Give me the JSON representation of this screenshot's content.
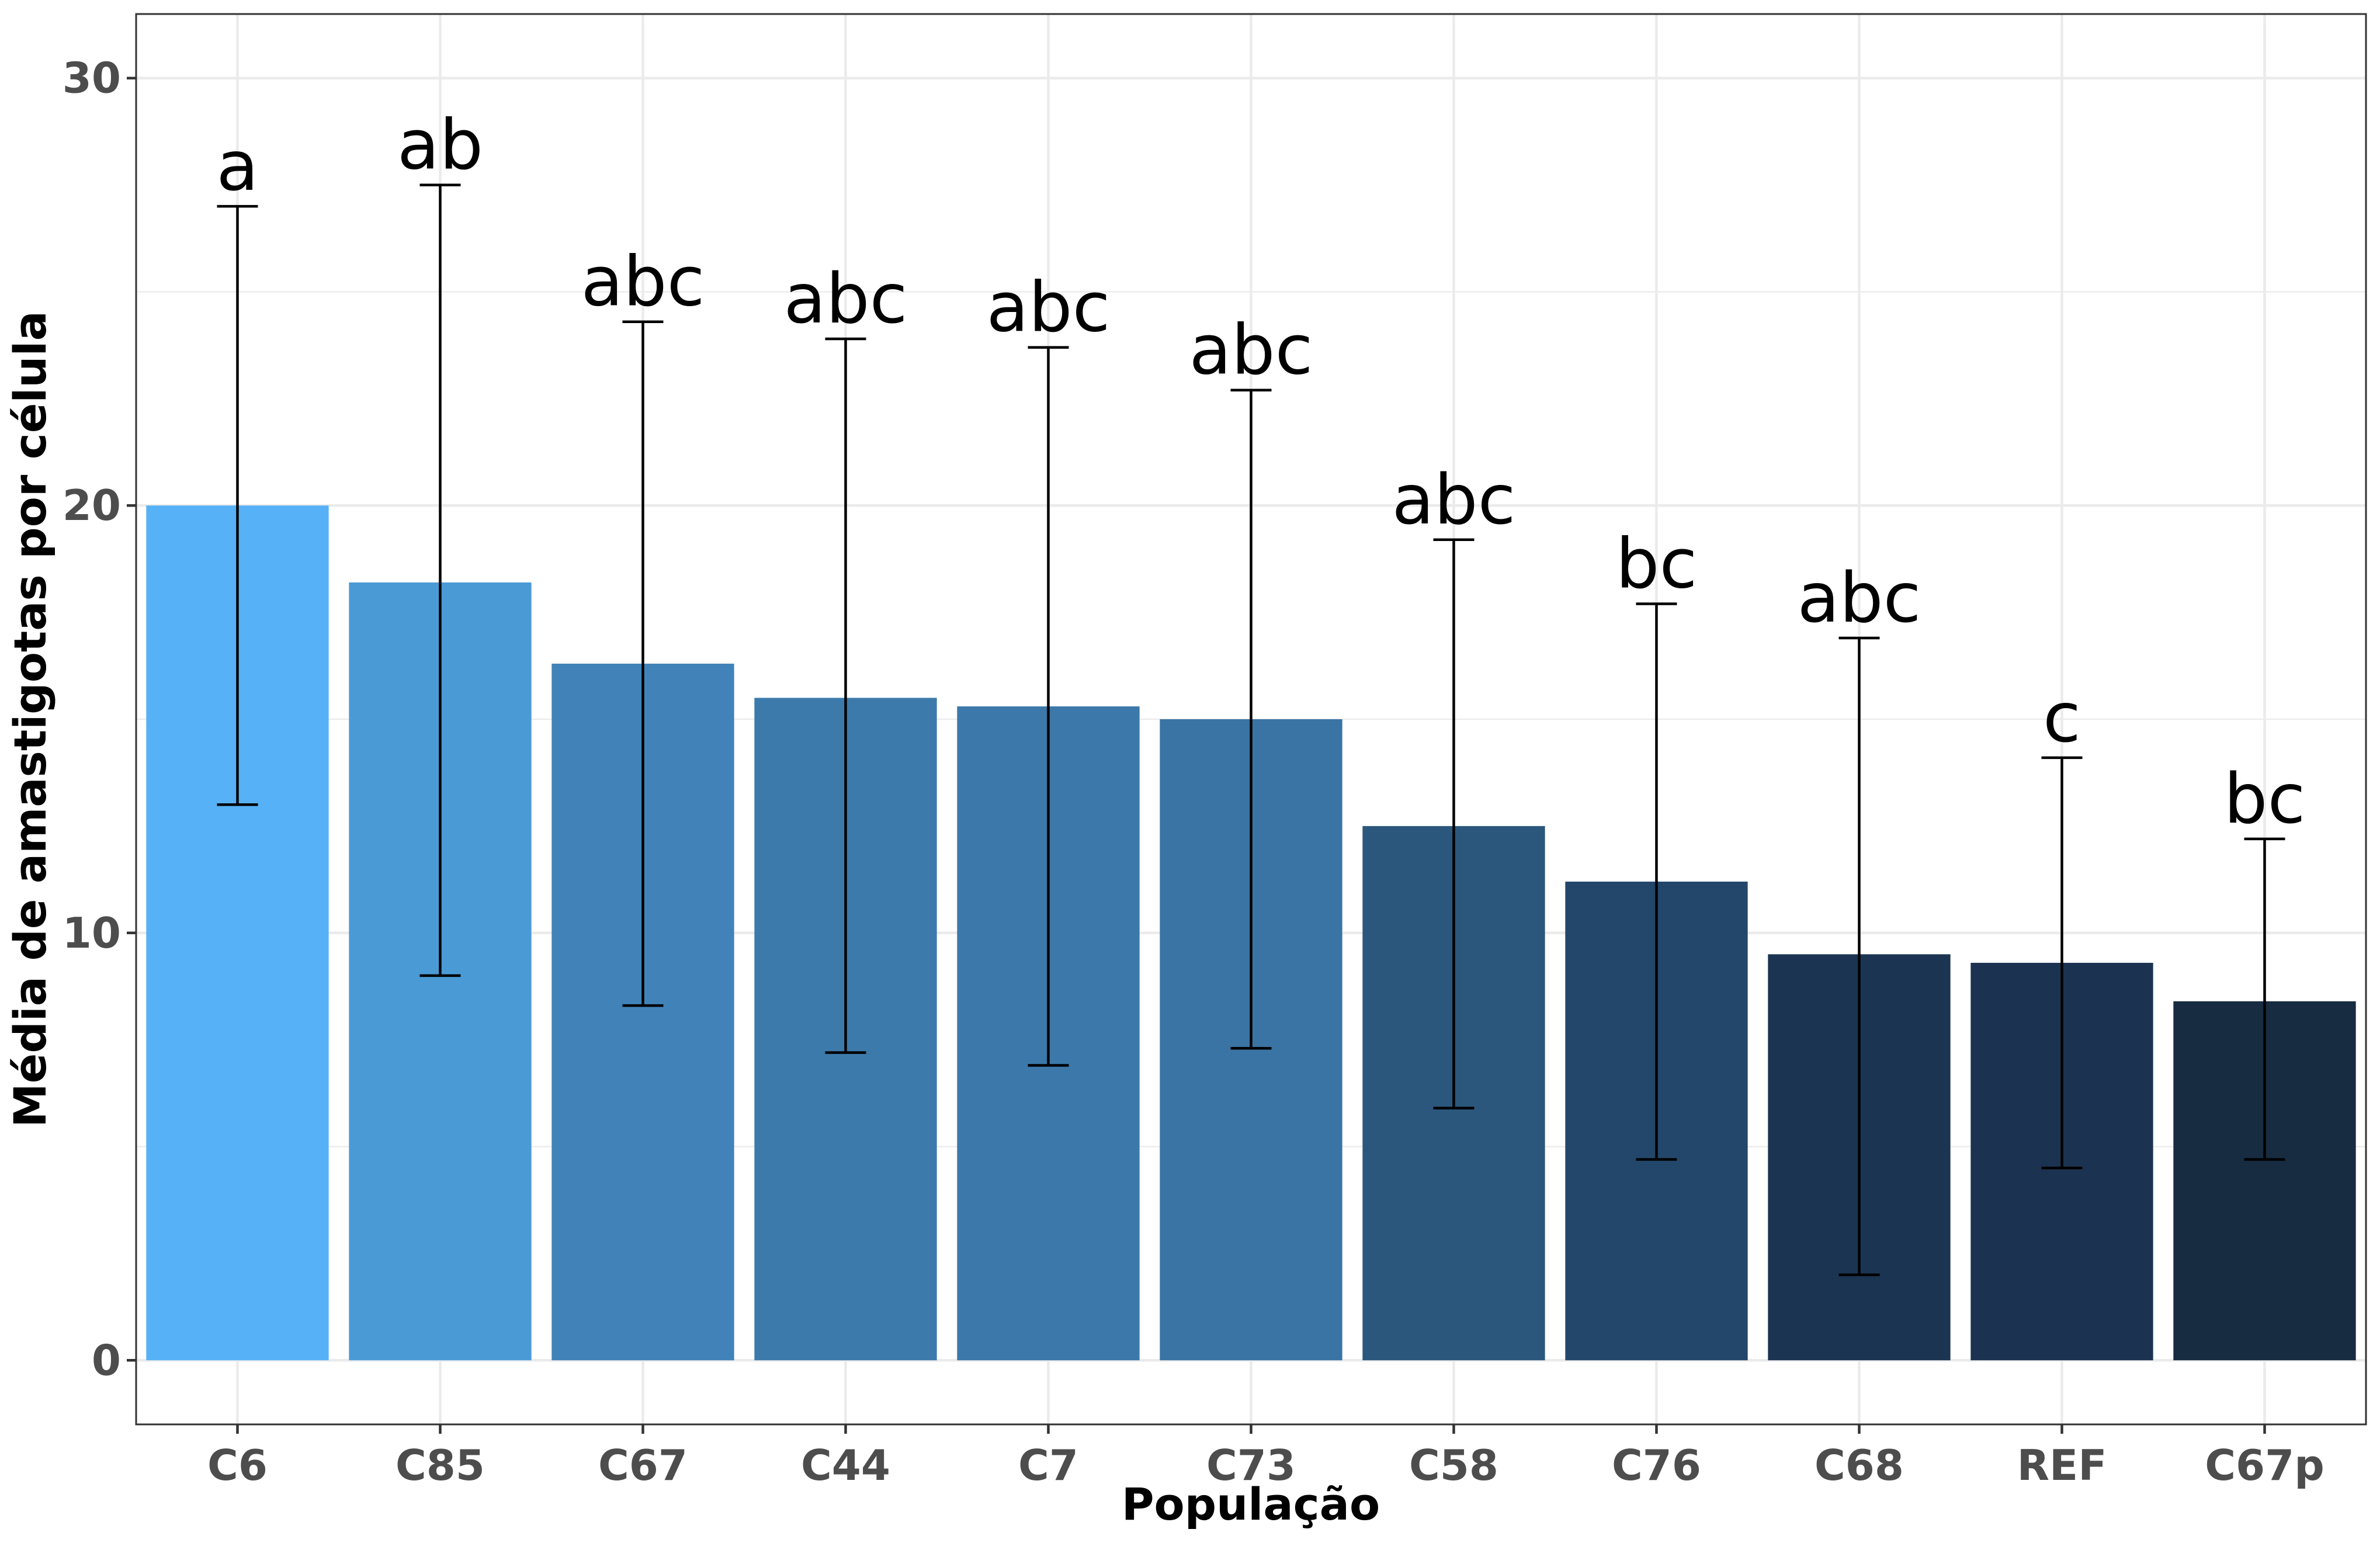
{
  "chart_data": {
    "type": "bar",
    "title": "",
    "xlabel": "População",
    "ylabel": "Média de amastigotas por célula",
    "ylim": [
      -1.5,
      31.5
    ],
    "yticks": [
      0,
      10,
      20,
      30
    ],
    "grid": true,
    "categories": [
      "C6",
      "C85",
      "C67",
      "C44",
      "C7",
      "C73",
      "C58",
      "C76",
      "C68",
      "REF",
      "C67p"
    ],
    "values": [
      20.0,
      18.2,
      16.3,
      15.5,
      15.3,
      15.0,
      12.5,
      11.2,
      9.5,
      9.3,
      8.4
    ],
    "error_low": [
      13.0,
      9.0,
      8.3,
      7.2,
      6.9,
      7.3,
      5.9,
      4.7,
      2.0,
      4.5,
      4.7
    ],
    "error_high": [
      27.0,
      27.5,
      24.3,
      23.9,
      23.7,
      22.7,
      19.2,
      17.7,
      16.9,
      14.1,
      12.2
    ],
    "significance_labels": [
      "a",
      "ab",
      "abc",
      "abc",
      "abc",
      "abc",
      "abc",
      "bc",
      "abc",
      "c",
      "bc"
    ],
    "bar_colors": [
      "#56B1F7",
      "#4A9AD6",
      "#4183B8",
      "#3D7AAC",
      "#3C78A9",
      "#3A74A4",
      "#2B577D",
      "#23476A",
      "#1B3451",
      "#1B3350",
      "#172B41"
    ]
  }
}
